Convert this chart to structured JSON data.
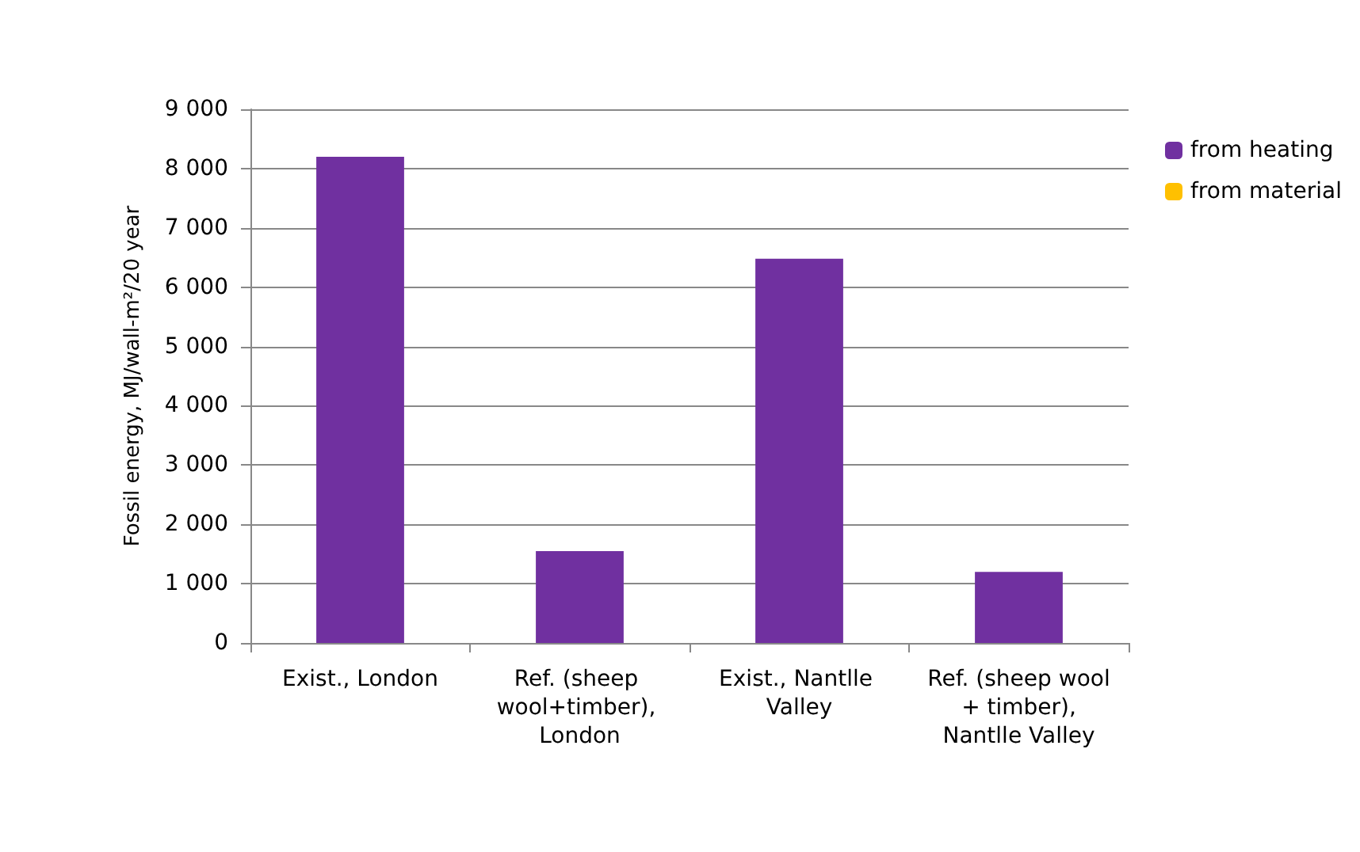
{
  "chart_data": {
    "type": "bar",
    "ylabel": "Fossil energy, MJ/wall-m²/20 year",
    "categories": [
      "Exist., London",
      "Ref. (sheep wool+timber), London",
      "Exist., Nantlle Valley",
      "Ref. (sheep wool + timber), Nantlle Valley"
    ],
    "series": [
      {
        "name": "from heating",
        "color": "#7030a0",
        "values": [
          8200,
          1550,
          6480,
          1200
        ]
      },
      {
        "name": "from material",
        "color": "#ffc000",
        "values": [
          0,
          0,
          0,
          0
        ]
      }
    ],
    "stacked": true,
    "ylim": [
      0,
      9000
    ],
    "yticks": [
      0,
      {
        "value": 1000,
        "label": "1 000"
      },
      {
        "value": 2000,
        "label": "2 000"
      },
      {
        "value": 3000,
        "label": "3 000"
      },
      {
        "value": 4000,
        "label": "4 000"
      },
      {
        "value": 5000,
        "label": "5 000"
      },
      {
        "value": 6000,
        "label": "6 000"
      },
      {
        "value": 7000,
        "label": "7 000"
      },
      {
        "value": 8000,
        "label": "8 000"
      },
      {
        "value": 9000,
        "label": "9 000"
      }
    ],
    "grid": "y",
    "legend": "right"
  }
}
